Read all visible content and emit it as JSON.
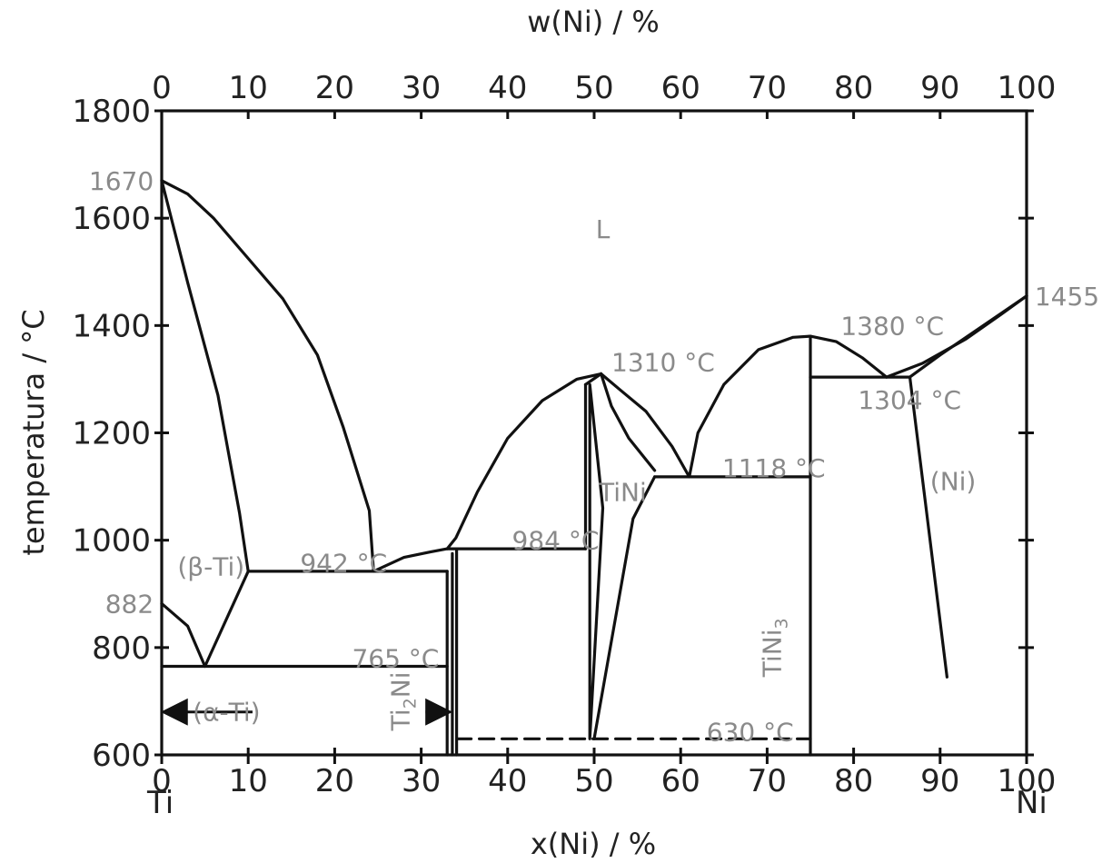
{
  "chart_data": {
    "type": "line",
    "title": "",
    "xlabel_bottom": "x(Ni) / %",
    "xlabel_top": "w(Ni) / %",
    "ylabel": "temperatura / °C",
    "xlim": [
      0,
      100
    ],
    "ylim": [
      600,
      1800
    ],
    "x_ticks": [
      "0",
      "10",
      "20",
      "30",
      "40",
      "50",
      "60",
      "70",
      "80",
      "90",
      "100"
    ],
    "top_ticks": [
      "0",
      "10",
      "20",
      "30",
      "40",
      "50",
      "60",
      "70",
      "80",
      "90",
      "100"
    ],
    "y_ticks": [
      "600",
      "800",
      "1000",
      "1200",
      "1400",
      "1600",
      "1800"
    ],
    "end_labels": {
      "left": "Ti",
      "right": "Ni"
    },
    "temperature_labels": [
      {
        "text": "1670",
        "x": -0.3,
        "y": 1670
      },
      {
        "text": "882",
        "x": -0.3,
        "y": 882
      },
      {
        "text": "1455",
        "x": 100.3,
        "y": 1455
      },
      {
        "text": "942 °C",
        "x": 16,
        "y": 958
      },
      {
        "text": "765 °C",
        "x": 22,
        "y": 780
      },
      {
        "text": "984 °C",
        "x": 40.5,
        "y": 1000
      },
      {
        "text": "1310 °C",
        "x": 52,
        "y": 1332
      },
      {
        "text": "1380 °C",
        "x": 78.5,
        "y": 1400
      },
      {
        "text": "1304 °C",
        "x": 80.5,
        "y": 1262
      },
      {
        "text": "1118 °C",
        "x": 64.8,
        "y": 1135
      },
      {
        "text": "630 °C",
        "x": 63,
        "y": 643
      }
    ],
    "phase_labels": [
      {
        "text": "L",
        "x": 51,
        "y": 1580
      },
      {
        "text": "(β-Ti)",
        "x": 5.7,
        "y": 951
      },
      {
        "text": "TiNi",
        "x": 53.3,
        "y": 1090
      },
      {
        "text": "(Ni)",
        "x": 91.5,
        "y": 1110
      },
      {
        "text": "(α-Ti)",
        "x": 7.5,
        "y": 680
      }
    ],
    "rotated_labels": [
      {
        "text": "Ti",
        "sub": "2",
        "suffix": "Ni",
        "x": 28.6,
        "y": 700
      },
      {
        "text": "TiNi",
        "sub": "3",
        "suffix": "",
        "x": 71.6,
        "y": 800
      }
    ],
    "series": [
      {
        "points": [
          [
            0,
            1670
          ],
          [
            3,
            1645
          ],
          [
            6,
            1600
          ],
          [
            10,
            1525
          ],
          [
            14,
            1450
          ],
          [
            18,
            1345
          ],
          [
            21,
            1210
          ],
          [
            24,
            1055
          ],
          [
            24.5,
            942
          ]
        ]
      },
      {
        "points": [
          [
            0,
            1670
          ],
          [
            3,
            1480
          ],
          [
            6.5,
            1270
          ],
          [
            9,
            1050
          ],
          [
            10,
            942
          ]
        ]
      },
      {
        "points": [
          [
            10,
            942
          ],
          [
            33,
            942
          ]
        ]
      },
      {
        "points": [
          [
            0,
            882
          ],
          [
            3,
            840
          ],
          [
            5,
            765
          ]
        ]
      },
      {
        "points": [
          [
            5,
            765
          ],
          [
            10,
            942
          ]
        ]
      },
      {
        "points": [
          [
            0,
            765
          ],
          [
            33,
            765
          ]
        ]
      },
      {
        "points": [
          [
            24.5,
            942
          ],
          [
            28,
            968
          ],
          [
            31,
            978
          ],
          [
            33,
            984
          ],
          [
            34,
            984
          ]
        ]
      },
      {
        "points": [
          [
            33,
            984
          ],
          [
            34,
            1004
          ],
          [
            36.5,
            1090
          ],
          [
            40,
            1190
          ],
          [
            44,
            1260
          ],
          [
            48,
            1300
          ],
          [
            50.8,
            1310
          ]
        ]
      },
      {
        "points": [
          [
            33,
            942
          ],
          [
            33,
            600
          ]
        ]
      },
      {
        "points": [
          [
            33.6,
            975
          ],
          [
            33.6,
            600
          ]
        ]
      },
      {
        "points": [
          [
            34.1,
            984
          ],
          [
            34.1,
            600
          ]
        ]
      },
      {
        "points": [
          [
            34.1,
            984
          ],
          [
            49,
            984
          ]
        ]
      },
      {
        "points": [
          [
            49,
            1290
          ],
          [
            49,
            984
          ]
        ]
      },
      {
        "points": [
          [
            49,
            1290
          ],
          [
            50.8,
            1310
          ]
        ]
      },
      {
        "points": [
          [
            49.5,
            1290
          ],
          [
            49.5,
            630
          ],
          [
            51,
            1060
          ],
          [
            49.5,
            1290
          ]
        ]
      },
      {
        "points": [
          [
            50.8,
            1310
          ],
          [
            52,
            1250
          ],
          [
            54,
            1190
          ],
          [
            57,
            1130
          ]
        ]
      },
      {
        "points": [
          [
            50.8,
            1310
          ],
          [
            53,
            1280
          ],
          [
            56,
            1240
          ],
          [
            59,
            1175
          ],
          [
            61,
            1118
          ]
        ]
      },
      {
        "points": [
          [
            57,
            1118
          ],
          [
            75,
            1118
          ]
        ]
      },
      {
        "points": [
          [
            57,
            1118
          ],
          [
            54.5,
            1040
          ],
          [
            50,
            630
          ]
        ]
      },
      {
        "points": [
          [
            61,
            1118
          ],
          [
            62,
            1200
          ],
          [
            65,
            1290
          ],
          [
            69,
            1355
          ],
          [
            73,
            1378
          ],
          [
            75,
            1380
          ],
          [
            78,
            1370
          ],
          [
            81,
            1340
          ],
          [
            83.8,
            1304
          ]
        ]
      },
      {
        "points": [
          [
            75,
            1380
          ],
          [
            75,
            600
          ]
        ]
      },
      {
        "points": [
          [
            75,
            1304
          ],
          [
            86.5,
            1304
          ]
        ]
      },
      {
        "points": [
          [
            83.8,
            1304
          ],
          [
            88,
            1330
          ],
          [
            93,
            1375
          ],
          [
            97,
            1420
          ],
          [
            100,
            1455
          ]
        ]
      },
      {
        "points": [
          [
            86.5,
            1304
          ],
          [
            90,
            1345
          ],
          [
            95,
            1400
          ],
          [
            100,
            1455
          ]
        ]
      },
      {
        "points": [
          [
            86.5,
            1304
          ],
          [
            90.8,
            745
          ]
        ]
      }
    ],
    "dashed_segments": [
      {
        "points": [
          [
            34.1,
            630
          ],
          [
            75,
            630
          ]
        ]
      }
    ],
    "arrows": [
      {
        "from": [
          10.5,
          680
        ],
        "to": [
          0.5,
          680
        ]
      },
      {
        "from": [
          30.5,
          680
        ],
        "to": [
          33,
          680
        ]
      }
    ]
  }
}
